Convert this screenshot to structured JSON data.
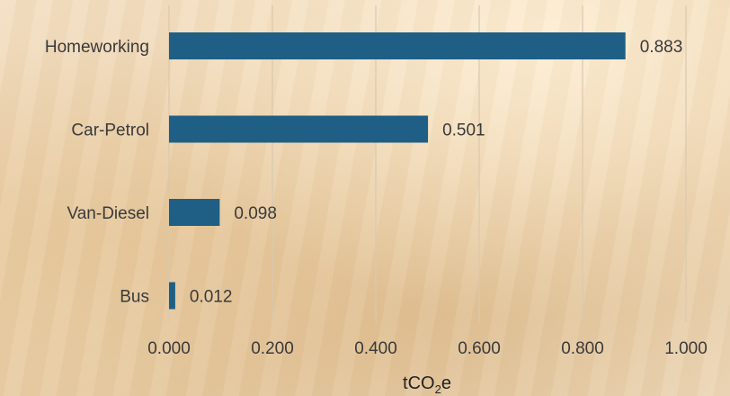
{
  "chart_data": {
    "type": "bar",
    "orientation": "horizontal",
    "categories": [
      "Homeworking",
      "Car-Petrol",
      "Van-Diesel",
      "Bus"
    ],
    "values": [
      0.883,
      0.501,
      0.098,
      0.012
    ],
    "data_labels": [
      "0.883",
      "0.501",
      "0.098",
      "0.012"
    ],
    "xlabel": {
      "main": "tCO",
      "subscript": "2",
      "suffix": "e"
    },
    "xlim": [
      0,
      1
    ],
    "ticks": [
      0,
      0.2,
      0.4,
      0.6,
      0.8,
      1.0
    ],
    "tick_labels": [
      "0.000",
      "0.200",
      "0.400",
      "0.600",
      "0.800",
      "1.000"
    ],
    "grid": true,
    "bar_color": "#1f5f85",
    "grid_color": "#d9c9b0"
  }
}
